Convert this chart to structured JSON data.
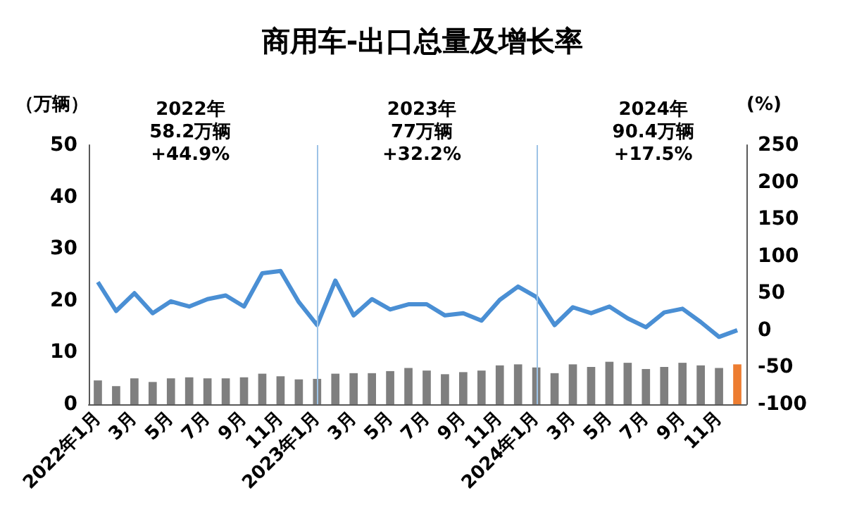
{
  "chart_data": {
    "type": "bar",
    "title": "商用车-出口总量及增长率",
    "ylabel": "（万辆）",
    "y2label": "(%)",
    "categories": [
      "2022年1月",
      null,
      "3月",
      null,
      "5月",
      null,
      "7月",
      null,
      "9月",
      null,
      "11月",
      null,
      "2023年1月",
      null,
      "3月",
      null,
      "5月",
      null,
      "7月",
      null,
      "9月",
      null,
      "11月",
      null,
      "2024年1月",
      null,
      "3月",
      null,
      "5月",
      null,
      "7月",
      null,
      "9月",
      null,
      "11月",
      null
    ],
    "series": [
      {
        "colors": [
          "#7f7f7f",
          "#7f7f7f",
          "#7f7f7f",
          "#7f7f7f",
          "#7f7f7f",
          "#7f7f7f",
          "#7f7f7f",
          "#7f7f7f",
          "#7f7f7f",
          "#7f7f7f",
          "#7f7f7f",
          "#7f7f7f",
          "#7f7f7f",
          "#7f7f7f",
          "#7f7f7f",
          "#7f7f7f",
          "#7f7f7f",
          "#7f7f7f",
          "#7f7f7f",
          "#7f7f7f",
          "#7f7f7f",
          "#7f7f7f",
          "#7f7f7f",
          "#7f7f7f",
          "#7f7f7f",
          "#7f7f7f",
          "#7f7f7f",
          "#7f7f7f",
          "#7f7f7f",
          "#7f7f7f",
          "#7f7f7f",
          "#7f7f7f",
          "#7f7f7f",
          "#7f7f7f",
          "#7f7f7f",
          "#ed7d31"
        ],
        "values": [
          4.6,
          3.5,
          5.0,
          4.3,
          5.0,
          5.2,
          5.0,
          5.0,
          5.2,
          5.9,
          5.4,
          4.8,
          4.9,
          5.9,
          6.0,
          6.0,
          6.4,
          7.0,
          6.5,
          5.8,
          6.2,
          6.5,
          7.5,
          7.7,
          7.1,
          6.0,
          7.7,
          7.2,
          8.2,
          8.0,
          6.8,
          7.2,
          8.0,
          7.5,
          7.0,
          7.7
        ]
      },
      {
        "type": "line",
        "axis": "y2",
        "color": "#4a8fd4",
        "values": [
          65,
          26,
          50,
          23,
          39,
          32,
          42,
          47,
          32,
          77,
          80,
          38,
          7,
          67,
          20,
          42,
          28,
          35,
          35,
          20,
          23,
          13,
          41,
          59,
          45,
          7,
          31,
          23,
          32,
          16,
          4,
          24,
          29,
          11,
          -9,
          0
        ]
      }
    ],
    "ylim": [
      0,
      50
    ],
    "yticks": [
      0,
      10,
      20,
      30,
      40,
      50
    ],
    "y2lim": [
      -100,
      250
    ],
    "y2ticks": [
      -100,
      -50,
      0,
      50,
      100,
      150,
      200,
      250
    ],
    "ref_lines": [
      {
        "axis": "x",
        "value": "2023年1月",
        "color": "#9dc3e6"
      },
      {
        "axis": "x",
        "value": "2024年1月",
        "color": "#9dc3e6"
      }
    ],
    "annotations": [
      "2022年\n58.2万辆\n+44.9%",
      "2023年\n77万辆\n+32.2%",
      "2024年\n90.4万辆\n+17.5%"
    ],
    "grid": false,
    "marker": "none",
    "line_style": "solid"
  }
}
